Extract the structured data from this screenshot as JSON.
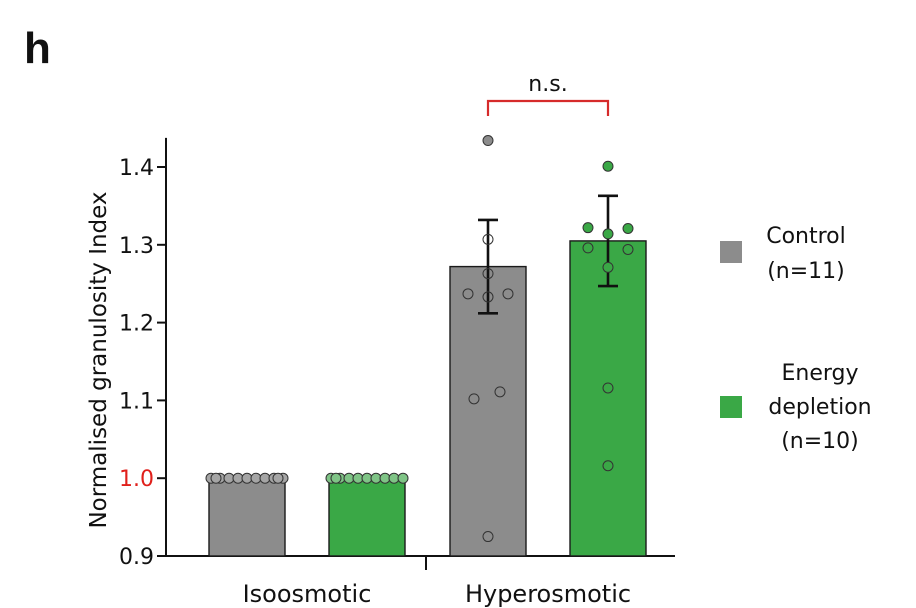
{
  "panel_label": "h",
  "chart_data": {
    "type": "bar",
    "title": "",
    "ylabel": "Normalised granulosity Index",
    "xlabel": "",
    "ylim": [
      0.9,
      1.44
    ],
    "yticks": [
      "0.9",
      "1.0",
      "1.1",
      "1.2",
      "1.3",
      "1.4"
    ],
    "yticks_values": [
      0.9,
      1.0,
      1.1,
      1.2,
      1.3,
      1.4
    ],
    "highlight_tick": "1.0",
    "highlight_color": "#e0201b",
    "categories": [
      "Isoosmotic",
      "Hyperosmotic"
    ],
    "grid": false,
    "legend_position": "right",
    "series": [
      {
        "name": "Control",
        "n_label": "(n=11)",
        "color": "#8c8c8c",
        "values": [
          1.0,
          1.272
        ],
        "error": [
          0.0,
          0.06
        ],
        "points": [
          [
            1.0,
            1.0,
            1.0,
            1.0,
            1.0,
            1.0,
            1.0,
            1.0,
            1.0,
            1.0,
            1.0
          ],
          [
            1.434,
            1.307,
            1.263,
            1.237,
            1.233,
            1.237,
            1.111,
            1.102,
            0.925
          ]
        ]
      },
      {
        "name": "Energy depletion",
        "name_lines": [
          "Energy",
          "depletion"
        ],
        "n_label": "(n=10)",
        "color": "#3aa846",
        "values": [
          1.0,
          1.305
        ],
        "error": [
          0.0,
          0.058
        ],
        "points": [
          [
            1.0,
            1.0,
            1.0,
            1.0,
            1.0,
            1.0,
            1.0,
            1.0,
            1.0,
            1.0
          ],
          [
            1.401,
            1.322,
            1.321,
            1.314,
            1.296,
            1.294,
            1.271,
            1.116,
            1.016
          ]
        ]
      }
    ],
    "annotation": {
      "text": "n.s.",
      "color": "#d62b2b",
      "between": [
        "Control",
        "Energy depletion"
      ],
      "category": "Hyperosmotic"
    }
  }
}
